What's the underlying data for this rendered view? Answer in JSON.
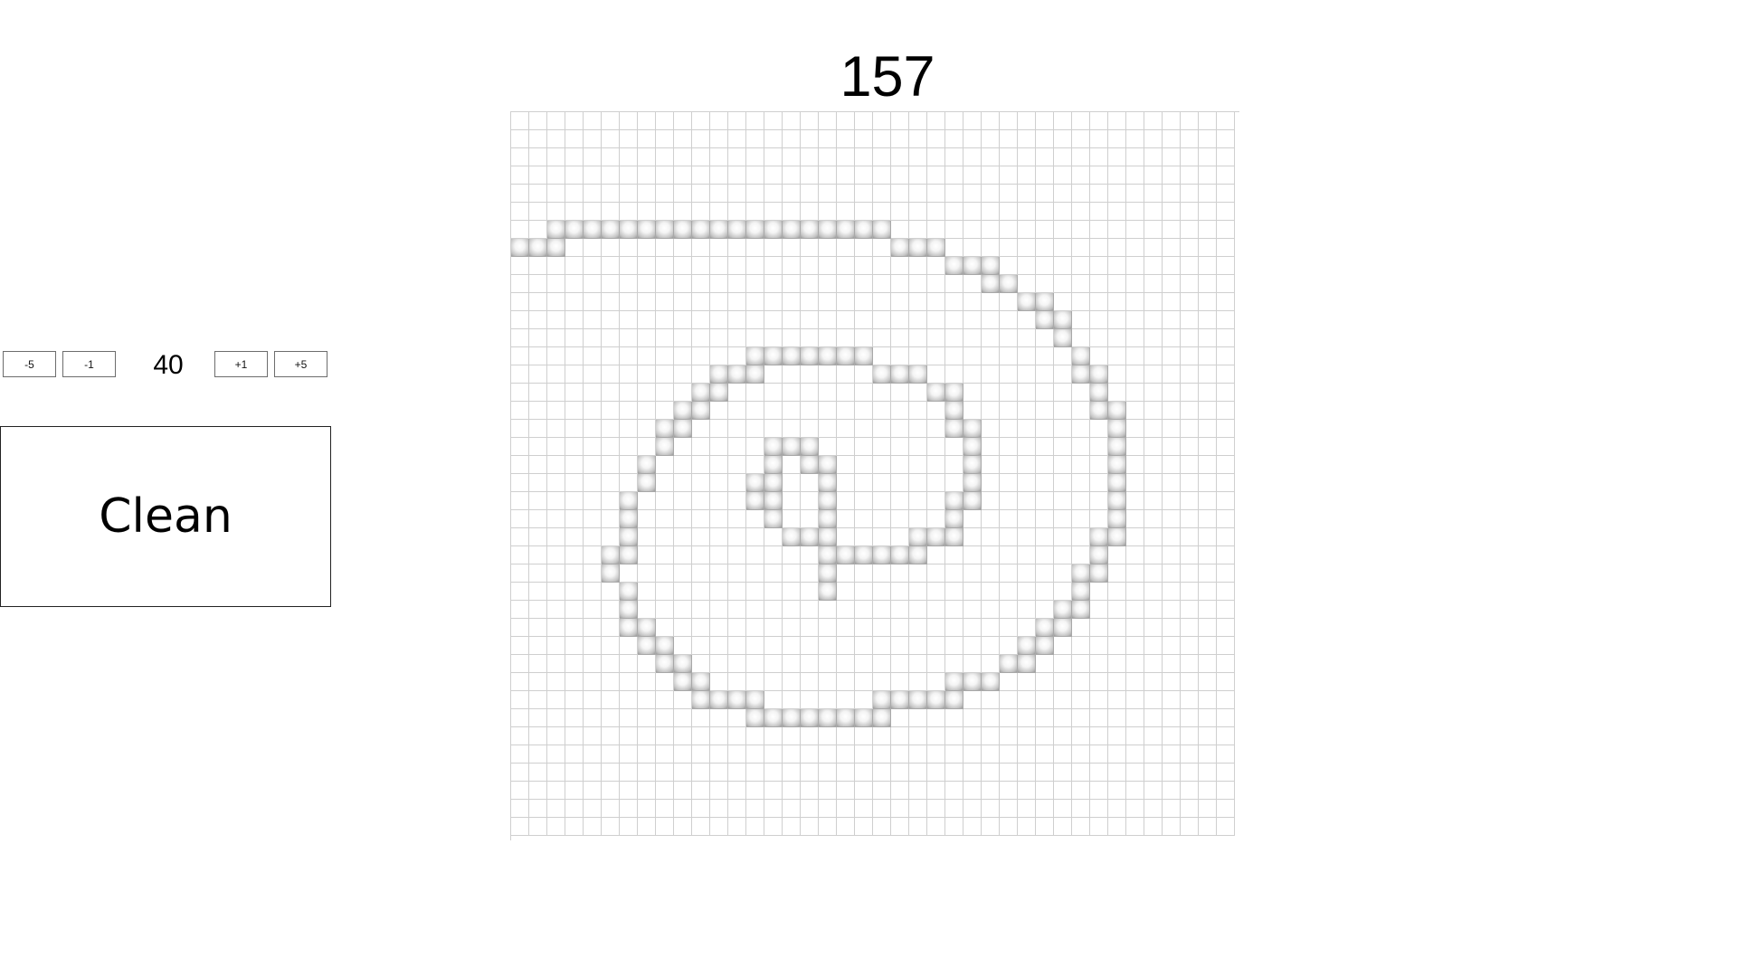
{
  "counter": "157",
  "controls": {
    "minus5_label": "-5",
    "minus1_label": "-1",
    "size_value": "40",
    "plus1_label": "+1",
    "plus5_label": "+5"
  },
  "clean_label": "Clean",
  "grid": {
    "size": 40,
    "on_color": "#bdbdbd",
    "line_color": "#cfcfcf",
    "filled_cells": [
      [
        6,
        2
      ],
      [
        6,
        3
      ],
      [
        6,
        4
      ],
      [
        6,
        5
      ],
      [
        6,
        6
      ],
      [
        6,
        7
      ],
      [
        6,
        8
      ],
      [
        6,
        9
      ],
      [
        6,
        10
      ],
      [
        6,
        11
      ],
      [
        6,
        12
      ],
      [
        6,
        13
      ],
      [
        6,
        14
      ],
      [
        6,
        15
      ],
      [
        6,
        16
      ],
      [
        6,
        17
      ],
      [
        6,
        18
      ],
      [
        6,
        19
      ],
      [
        6,
        20
      ],
      [
        7,
        0
      ],
      [
        7,
        1
      ],
      [
        7,
        2
      ],
      [
        7,
        21
      ],
      [
        7,
        22
      ],
      [
        7,
        23
      ],
      [
        8,
        24
      ],
      [
        8,
        25
      ],
      [
        8,
        26
      ],
      [
        9,
        26
      ],
      [
        9,
        27
      ],
      [
        10,
        28
      ],
      [
        10,
        29
      ],
      [
        11,
        29
      ],
      [
        11,
        30
      ],
      [
        12,
        30
      ],
      [
        13,
        31
      ],
      [
        13,
        13
      ],
      [
        13,
        14
      ],
      [
        13,
        15
      ],
      [
        13,
        16
      ],
      [
        13,
        17
      ],
      [
        13,
        18
      ],
      [
        13,
        19
      ],
      [
        14,
        11
      ],
      [
        14,
        12
      ],
      [
        14,
        13
      ],
      [
        14,
        20
      ],
      [
        14,
        21
      ],
      [
        14,
        22
      ],
      [
        14,
        31
      ],
      [
        14,
        32
      ],
      [
        15,
        10
      ],
      [
        15,
        11
      ],
      [
        15,
        23
      ],
      [
        15,
        24
      ],
      [
        15,
        32
      ],
      [
        16,
        9
      ],
      [
        16,
        10
      ],
      [
        16,
        24
      ],
      [
        16,
        32
      ],
      [
        16,
        33
      ],
      [
        17,
        8
      ],
      [
        17,
        9
      ],
      [
        17,
        24
      ],
      [
        17,
        25
      ],
      [
        17,
        33
      ],
      [
        18,
        8
      ],
      [
        18,
        25
      ],
      [
        18,
        33
      ],
      [
        18,
        14
      ],
      [
        18,
        15
      ],
      [
        18,
        16
      ],
      [
        19,
        7
      ],
      [
        19,
        25
      ],
      [
        19,
        33
      ],
      [
        19,
        14
      ],
      [
        19,
        16
      ],
      [
        19,
        17
      ],
      [
        20,
        7
      ],
      [
        20,
        25
      ],
      [
        20,
        33
      ],
      [
        20,
        13
      ],
      [
        20,
        14
      ],
      [
        20,
        17
      ],
      [
        21,
        6
      ],
      [
        21,
        24
      ],
      [
        21,
        25
      ],
      [
        21,
        33
      ],
      [
        21,
        13
      ],
      [
        21,
        14
      ],
      [
        21,
        17
      ],
      [
        22,
        6
      ],
      [
        22,
        24
      ],
      [
        22,
        33
      ],
      [
        22,
        14
      ],
      [
        22,
        17
      ],
      [
        23,
        6
      ],
      [
        23,
        22
      ],
      [
        23,
        23
      ],
      [
        23,
        24
      ],
      [
        23,
        32
      ],
      [
        23,
        33
      ],
      [
        23,
        15
      ],
      [
        23,
        16
      ],
      [
        23,
        17
      ],
      [
        24,
        5
      ],
      [
        24,
        6
      ],
      [
        24,
        21
      ],
      [
        24,
        22
      ],
      [
        24,
        32
      ],
      [
        24,
        17
      ],
      [
        24,
        18
      ],
      [
        24,
        19
      ],
      [
        24,
        20
      ],
      [
        25,
        5
      ],
      [
        25,
        31
      ],
      [
        25,
        32
      ],
      [
        25,
        17
      ],
      [
        26,
        6
      ],
      [
        26,
        31
      ],
      [
        26,
        17
      ],
      [
        27,
        6
      ],
      [
        27,
        30
      ],
      [
        27,
        31
      ],
      [
        28,
        6
      ],
      [
        28,
        7
      ],
      [
        28,
        29
      ],
      [
        28,
        30
      ],
      [
        29,
        7
      ],
      [
        29,
        8
      ],
      [
        29,
        28
      ],
      [
        29,
        29
      ],
      [
        30,
        8
      ],
      [
        30,
        9
      ],
      [
        30,
        27
      ],
      [
        30,
        28
      ],
      [
        31,
        9
      ],
      [
        31,
        10
      ],
      [
        31,
        24
      ],
      [
        31,
        25
      ],
      [
        31,
        26
      ],
      [
        32,
        10
      ],
      [
        32,
        11
      ],
      [
        32,
        12
      ],
      [
        32,
        13
      ],
      [
        32,
        20
      ],
      [
        32,
        21
      ],
      [
        32,
        22
      ],
      [
        32,
        23
      ],
      [
        32,
        24
      ],
      [
        33,
        13
      ],
      [
        33,
        14
      ],
      [
        33,
        15
      ],
      [
        33,
        16
      ],
      [
        33,
        17
      ],
      [
        33,
        18
      ],
      [
        33,
        19
      ],
      [
        33,
        20
      ]
    ]
  }
}
